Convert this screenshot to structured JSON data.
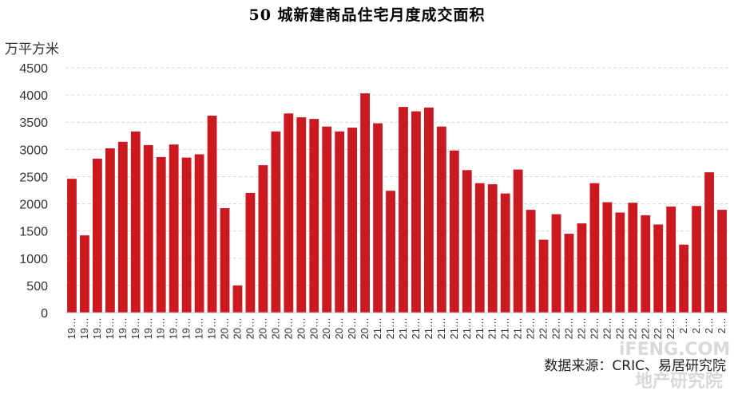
{
  "chart_data": {
    "type": "bar",
    "title": "50 城新建商品住宅月度成交面积",
    "ylabel": "万平方米",
    "ylim": [
      0,
      4500
    ],
    "yticks": [
      0,
      500,
      1000,
      1500,
      2000,
      2500,
      3000,
      3500,
      4000,
      4500
    ],
    "grid": true,
    "bar_color": "#cc1820",
    "categories": [
      "19…",
      "19…",
      "19…",
      "19…",
      "19…",
      "19…",
      "19…",
      "19…",
      "19…",
      "19…",
      "19…",
      "19…",
      "20…",
      "20…",
      "20…",
      "20…",
      "20…",
      "20…",
      "20…",
      "20…",
      "20…",
      "20…",
      "20…",
      "20…",
      "21…",
      "21…",
      "21…",
      "21…",
      "21…",
      "21…",
      "21…",
      "21…",
      "21…",
      "21…",
      "21…",
      "21…",
      "22…",
      "22…",
      "22…",
      "22…",
      "22…",
      "22…",
      "22…",
      "22…",
      "22…",
      "22…",
      "22…",
      "22…",
      "2…",
      "2…",
      "2…",
      "2…"
    ],
    "values": [
      2460,
      1420,
      2830,
      3020,
      3140,
      3330,
      3080,
      2860,
      3090,
      2850,
      2910,
      3620,
      1920,
      500,
      2200,
      2710,
      3330,
      3660,
      3590,
      3560,
      3420,
      3330,
      3400,
      4030,
      3480,
      2240,
      3780,
      3700,
      3770,
      3420,
      2980,
      2620,
      2380,
      2360,
      2190,
      2630,
      1890,
      1340,
      1810,
      1450,
      1640,
      2380,
      2030,
      1840,
      2020,
      1790,
      1620,
      1950,
      1250,
      1960,
      2580,
      1890
    ]
  },
  "source": "数据来源：CRIC、易居研究院",
  "watermark": "iFENG.COM 地产研究院"
}
